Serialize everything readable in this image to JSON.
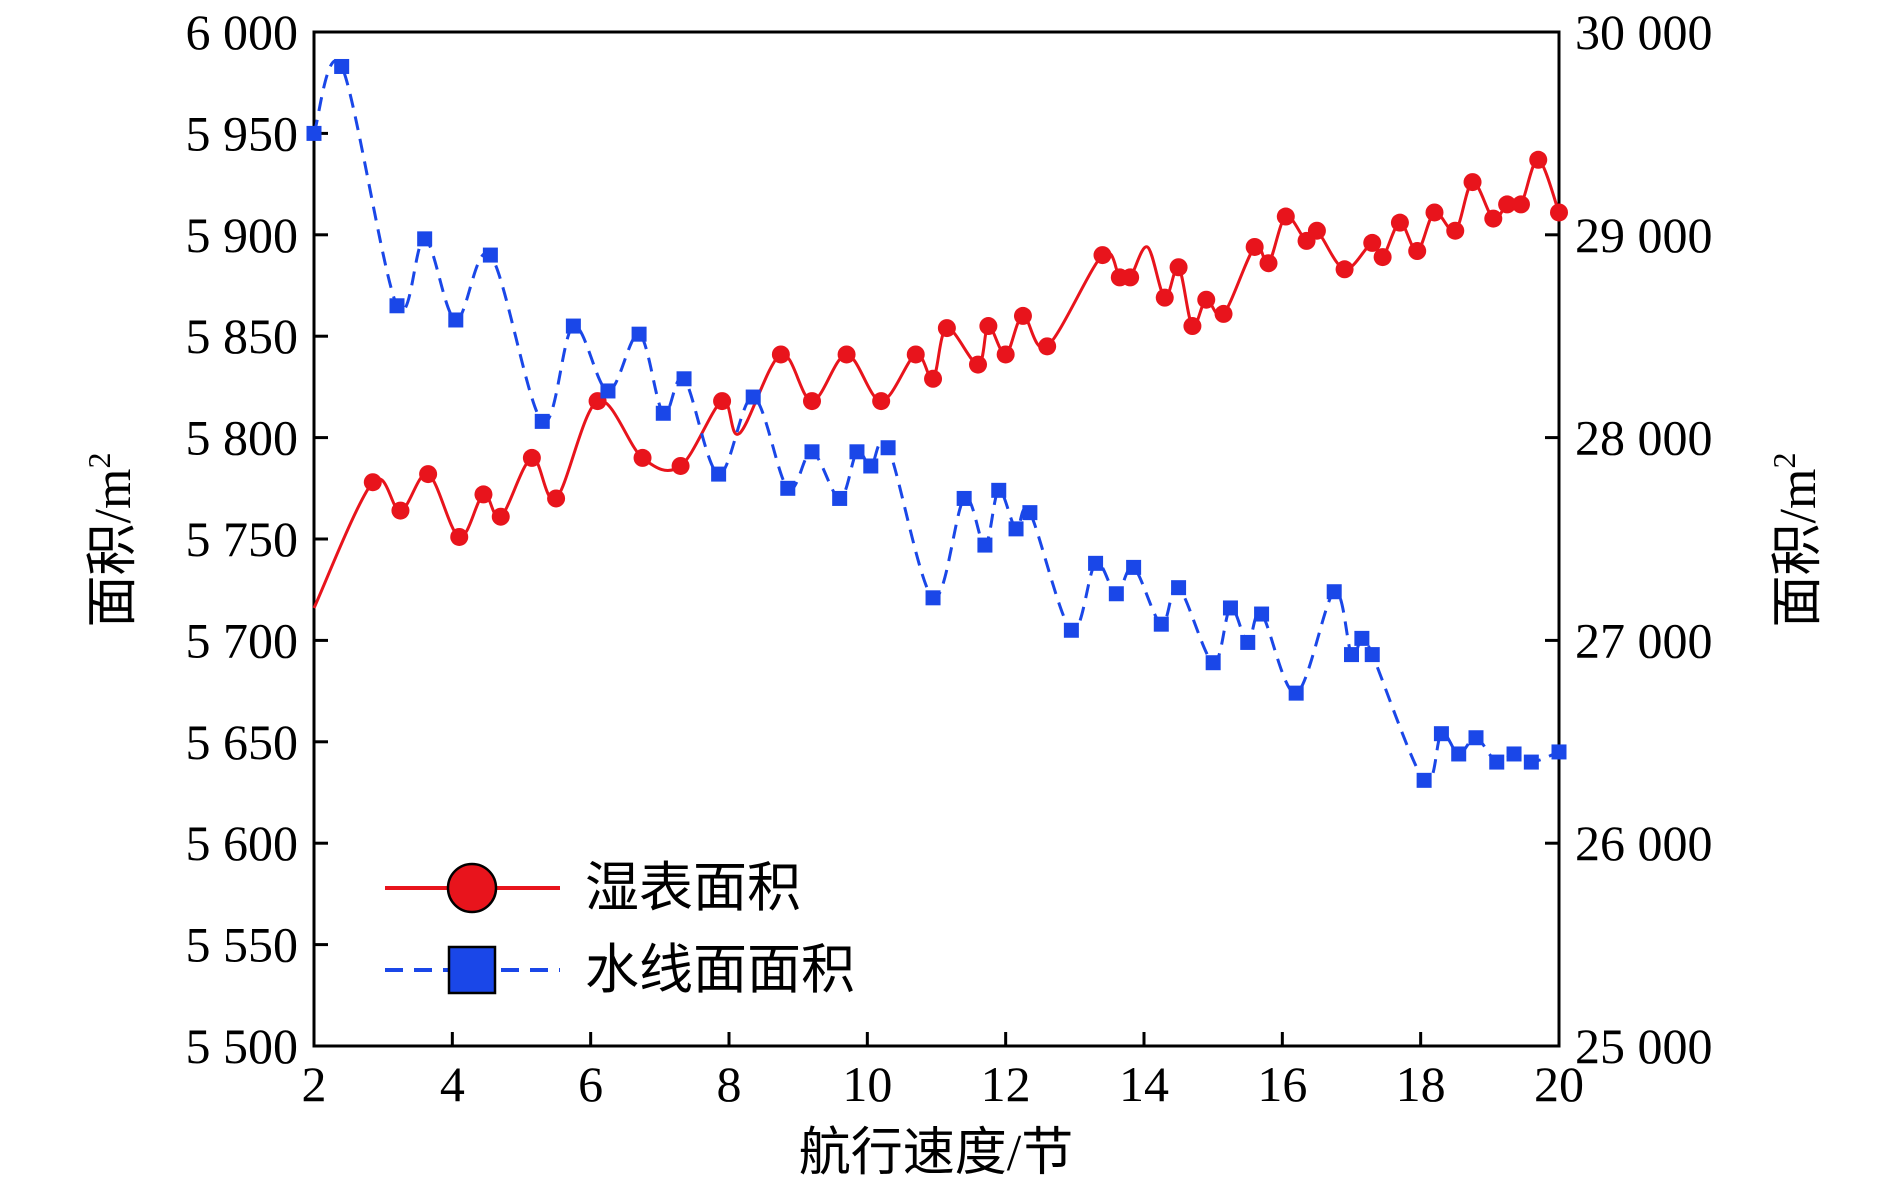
{
  "chart_data": {
    "type": "line",
    "title": "",
    "xlabel": "航行速度/节",
    "ylabel_left": "面积/m",
    "ylabel_right": "面积/m",
    "ylabel_sup": "2",
    "xlim": [
      2,
      20
    ],
    "ylim_left": [
      5500,
      6000
    ],
    "ylim_right": [
      25000,
      30000
    ],
    "x_ticks": [
      2,
      4,
      6,
      8,
      10,
      12,
      14,
      16,
      18,
      20
    ],
    "x_tick_labels": [
      "2",
      "4",
      "6",
      "8",
      "10",
      "12",
      "14",
      "16",
      "18",
      "20"
    ],
    "y_left_ticks": [
      5500,
      5550,
      5600,
      5650,
      5700,
      5750,
      5800,
      5850,
      5900,
      5950,
      6000
    ],
    "y_left_tick_labels": [
      "5 500",
      "5 550",
      "5 600",
      "5 650",
      "5 700",
      "5 750",
      "5 800",
      "5 850",
      "5 900",
      "5 950",
      "6 000"
    ],
    "y_right_ticks": [
      25000,
      26000,
      27000,
      28000,
      29000,
      30000
    ],
    "y_right_tick_labels": [
      "25 000",
      "26 000",
      "27 000",
      "28 000",
      "29 000",
      "30 000"
    ],
    "grid": false,
    "legend_position": "bottom-left",
    "series": [
      {
        "name": "湿表面积",
        "axis": "left",
        "color": "#e8141c",
        "line_style": "solid",
        "marker": "circle",
        "x": [
          2.0,
          2.85,
          3.25,
          3.65,
          4.1,
          4.45,
          4.7,
          5.15,
          5.5,
          6.1,
          6.75,
          7.3,
          7.9,
          8.15,
          8.75,
          9.2,
          9.7,
          10.2,
          10.7,
          10.95,
          11.15,
          11.6,
          11.75,
          12.0,
          12.25,
          12.6,
          13.4,
          13.65,
          13.8,
          14.05,
          14.3,
          14.5,
          14.7,
          14.9,
          15.15,
          15.6,
          15.8,
          16.05,
          16.35,
          16.5,
          16.9,
          17.3,
          17.45,
          17.7,
          17.95,
          18.2,
          18.5,
          18.75,
          19.05,
          19.25,
          19.45,
          19.7,
          20.0
        ],
        "y": [
          5716,
          5778,
          5764,
          5782,
          5751,
          5772,
          5761,
          5790,
          5770,
          5818,
          5790,
          5786,
          5818,
          5802,
          5841,
          5818,
          5841,
          5818,
          5841,
          5829,
          5854,
          5836,
          5855,
          5841,
          5860,
          5845,
          5890,
          5879,
          5879,
          5894,
          5869,
          5884,
          5855,
          5868,
          5861,
          5894,
          5886,
          5909,
          5897,
          5902,
          5883,
          5896,
          5889,
          5906,
          5892,
          5911,
          5902,
          5926,
          5908,
          5915,
          5915,
          5937,
          5911
        ],
        "markers_hidden_indices": [
          0,
          13,
          29
        ]
      },
      {
        "name": "水线面面积",
        "axis": "right",
        "color": "#1a47e8",
        "line_style": "dashed",
        "marker": "square",
        "x": [
          2.0,
          2.4,
          3.2,
          3.6,
          4.05,
          4.55,
          5.3,
          5.75,
          6.25,
          6.7,
          7.05,
          7.35,
          7.85,
          8.35,
          8.85,
          9.2,
          9.6,
          9.85,
          10.05,
          10.3,
          10.95,
          11.4,
          11.7,
          11.9,
          12.15,
          12.35,
          12.95,
          13.3,
          13.6,
          13.85,
          14.25,
          14.5,
          15.0,
          15.25,
          15.5,
          15.7,
          16.2,
          16.75,
          17.0,
          17.15,
          17.3,
          18.05,
          18.3,
          18.55,
          18.8,
          19.1,
          19.35,
          19.6,
          20.0
        ],
        "y": [
          29500,
          29830,
          28650,
          28980,
          28580,
          28900,
          28080,
          28550,
          28230,
          28510,
          28120,
          28290,
          27820,
          28200,
          27750,
          27930,
          27700,
          27930,
          27860,
          27950,
          27210,
          27700,
          27470,
          27740,
          27550,
          27630,
          27050,
          27380,
          27230,
          27360,
          27080,
          27260,
          26890,
          27160,
          26990,
          27130,
          26740,
          27240,
          26930,
          27010,
          26930,
          26310,
          26540,
          26440,
          26520,
          26400,
          26440,
          26400,
          26450
        ]
      }
    ]
  }
}
